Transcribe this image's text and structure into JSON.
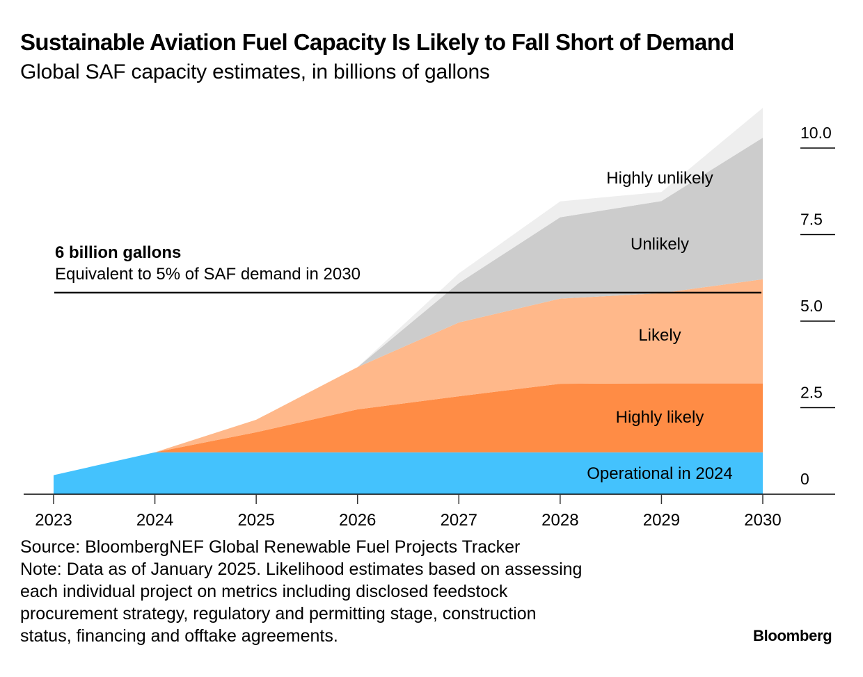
{
  "header": {
    "title": "Sustainable Aviation Fuel Capacity Is Likely to Fall Short of Demand",
    "subtitle": "Global SAF capacity estimates, in billions of gallons"
  },
  "chart_data": {
    "type": "area",
    "stacked": true,
    "title": "Sustainable Aviation Fuel Capacity Is Likely to Fall Short of Demand",
    "subtitle": "Global SAF capacity estimates, in billions of gallons",
    "xlabel": "",
    "ylabel": "Billions of gallons",
    "x": [
      "2023",
      "2024",
      "2025",
      "2026",
      "2027",
      "2028",
      "2029",
      "2030"
    ],
    "ylim": [
      0,
      11.2
    ],
    "yticks": [
      0,
      2.5,
      5.0,
      7.5,
      10.0
    ],
    "ytick_labels": [
      "0",
      "2.5",
      "5.0",
      "7.5",
      "10.0"
    ],
    "y_axis_side": "right",
    "grid": false,
    "series": [
      {
        "name": "Operational in 2024",
        "color": "#44C2FD",
        "values": [
          0.55,
          1.21,
          1.21,
          1.21,
          1.21,
          1.21,
          1.21,
          1.21
        ]
      },
      {
        "name": "Highly likely",
        "color": "#FF8C45",
        "values": [
          0,
          0,
          0.58,
          1.24,
          1.62,
          1.98,
          1.99,
          1.99
        ]
      },
      {
        "name": "Likely",
        "color": "#FFB88A",
        "values": [
          0,
          0,
          0.36,
          1.22,
          2.13,
          2.46,
          2.61,
          3.01
        ]
      },
      {
        "name": "Unlikely",
        "color": "#CCCCCC",
        "values": [
          0,
          0,
          0,
          0,
          1.14,
          2.35,
          2.66,
          4.09
        ]
      },
      {
        "name": "Highly unlikely",
        "color": "#EEEEEE",
        "values": [
          0,
          0,
          0,
          0,
          0.28,
          0.46,
          0.26,
          0.86
        ]
      }
    ],
    "series_labels": [
      {
        "series": "Operational in 2024",
        "text": "Operational in 2024"
      },
      {
        "series": "Highly likely",
        "text": "Highly likely"
      },
      {
        "series": "Likely",
        "text": "Likely"
      },
      {
        "series": "Unlikely",
        "text": "Unlikely"
      },
      {
        "series": "Highly unlikely",
        "text": "Highly unlikely"
      }
    ],
    "reference_line": {
      "value": 6,
      "label_bold": "6 billion gallons",
      "label": "Equivalent to 5% of SAF demand in 2030",
      "color": "#000000"
    }
  },
  "footer": {
    "source": "Source: BloombergNEF Global Renewable Fuel Projects Tracker",
    "note_lines": [
      "Note: Data as of January 2025. Likelihood estimates based on assessing",
      "each individual project on metrics including disclosed feedstock",
      "procurement strategy, regulatory and permitting stage, construction",
      "status, financing and offtake agreements."
    ],
    "logo": "Bloomberg"
  }
}
